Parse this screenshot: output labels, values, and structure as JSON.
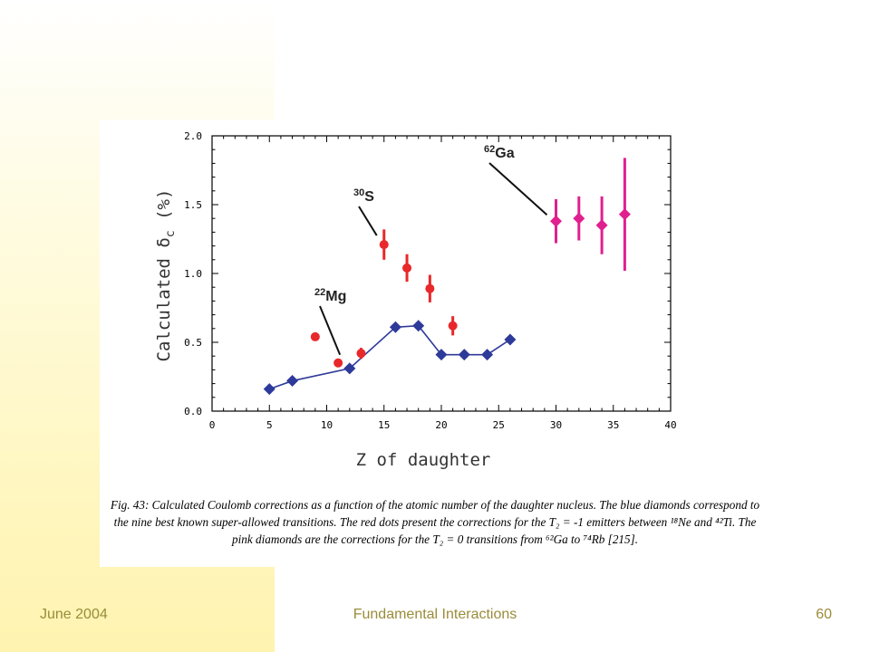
{
  "slide": {
    "footer_date": "June 2004",
    "footer_title": "Fundamental Interactions",
    "page_number": "60"
  },
  "caption": {
    "text": "Fig. 43: Calculated Coulomb corrections as a function of the atomic number of the daughter nucleus. The blue diamonds correspond to the nine best known super-allowed transitions. The red dots present the corrections for the T₂ = -1 emitters between ¹⁸Ne and ⁴²Ti. The pink diamonds are the corrections for the T₂ = 0 transitions from ⁶²Ga to ⁷⁴Rb [215]."
  },
  "colors": {
    "blue_series": "#2e3a9a",
    "red_series": "#e8282a",
    "pink_series": "#e0208f",
    "footer_text": "#9a8c3a",
    "band": "#fff3b0"
  },
  "chart_data": {
    "type": "scatter",
    "xlabel": "Z of daughter",
    "ylabel_main": "Calculated δ",
    "ylabel_sub": "c",
    "ylabel_unit": "(%)",
    "xlim": [
      0,
      40
    ],
    "ylim": [
      0,
      2.0
    ],
    "x_ticks": [
      0,
      5,
      10,
      15,
      20,
      25,
      30,
      35,
      40
    ],
    "x_tick_labels": [
      "0",
      "5",
      "10",
      "15",
      "20",
      "25",
      "30",
      "35",
      "40"
    ],
    "y_ticks": [
      0,
      0.5,
      1.0,
      1.5,
      2.0
    ],
    "y_tick_labels": [
      "0.0",
      "0.5",
      "1.0",
      "1.5",
      "2.0"
    ],
    "grid": false,
    "series": [
      {
        "marker": "diamond",
        "connected": true,
        "color": "#2e3a9a",
        "x": [
          5,
          7,
          12,
          16,
          18,
          20,
          22,
          24,
          26
        ],
        "y": [
          0.16,
          0.22,
          0.31,
          0.61,
          0.62,
          0.41,
          0.41,
          0.41,
          0.52
        ]
      },
      {
        "marker": "dot",
        "connected": false,
        "color": "#e8282a",
        "x": [
          9,
          11,
          13,
          15,
          17,
          19,
          21
        ],
        "y": [
          0.54,
          0.35,
          0.42,
          1.21,
          1.04,
          0.89,
          0.62
        ],
        "err": [
          0.03,
          0.02,
          0.04,
          0.11,
          0.1,
          0.1,
          0.07
        ]
      },
      {
        "marker": "diamond",
        "connected": false,
        "color": "#e0208f",
        "x": [
          30,
          32,
          34,
          36
        ],
        "y": [
          1.38,
          1.4,
          1.35,
          1.43
        ],
        "err": [
          0.16,
          0.16,
          0.21,
          0.41
        ]
      }
    ],
    "annotations": [
      {
        "mass": "30",
        "symbol": "S",
        "x": 15,
        "y": 1.21
      },
      {
        "mass": "22",
        "symbol": "Mg",
        "x": 11,
        "y": 0.35
      },
      {
        "mass": "62",
        "symbol": "Ga",
        "x": 30,
        "y": 1.38
      }
    ]
  }
}
